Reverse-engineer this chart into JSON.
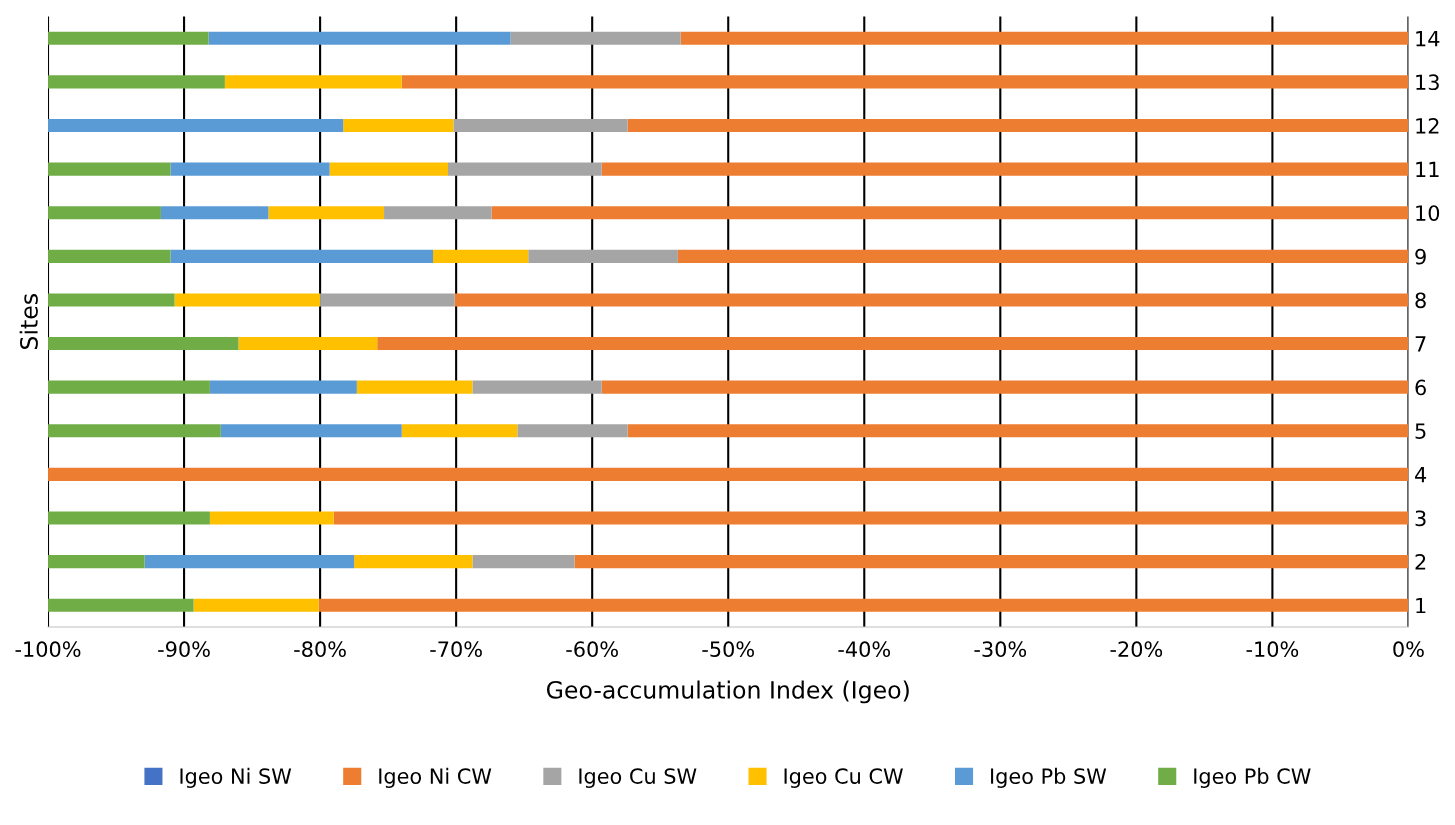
{
  "chart_data": {
    "type": "bar",
    "orientation": "horizontal",
    "stacked": true,
    "xlabel": "Geo-accumulation Index (Igeo)",
    "ylabel": "Sites",
    "categories": [
      "14",
      "13",
      "12",
      "11",
      "10",
      "9",
      "8",
      "7",
      "6",
      "5",
      "4",
      "3",
      "2",
      "1"
    ],
    "series": [
      {
        "name": "Igeo Ni SW",
        "color": "#4472c4",
        "values": [
          0,
          0,
          0,
          0,
          0,
          0,
          0,
          0,
          0,
          0,
          0,
          0,
          0,
          0
        ]
      },
      {
        "name": "Igeo Ni CW",
        "color": "#ed7d31",
        "values": [
          -53.5,
          -74.0,
          -57.4,
          -59.3,
          -67.4,
          -53.7,
          -70.1,
          -75.8,
          -59.3,
          -57.4,
          -100,
          -79.0,
          -61.3,
          -80.1
        ]
      },
      {
        "name": "Igeo Cu SW",
        "color": "#a5a5a5",
        "values": [
          -12.5,
          0,
          -12.8,
          -11.3,
          -7.9,
          -11.0,
          -9.9,
          0,
          -9.5,
          -8.1,
          0,
          0,
          -7.5,
          0
        ]
      },
      {
        "name": "Igeo Cu CW",
        "color": "#ffc000",
        "values": [
          0,
          -13.0,
          -8.1,
          -8.7,
          -8.5,
          -7.0,
          -10.7,
          -10.2,
          -8.5,
          -8.5,
          0,
          -9.1,
          -8.7,
          -9.2
        ]
      },
      {
        "name": "Igeo Pb SW",
        "color": "#5b9bd5",
        "values": [
          -22.2,
          0,
          -21.7,
          -11.7,
          -7.9,
          -19.3,
          0,
          0,
          -10.8,
          -13.3,
          0,
          0,
          -15.4,
          0
        ]
      },
      {
        "name": "Igeo Pb CW",
        "color": "#70ad47",
        "values": [
          -11.8,
          -13.0,
          0,
          -9.0,
          -8.3,
          -9.0,
          -9.3,
          -14.0,
          -11.9,
          -12.7,
          0,
          -11.9,
          -7.1,
          -10.7
        ]
      }
    ],
    "xlim": [
      -100,
      0
    ],
    "xticks": [
      {
        "value": -100,
        "label": "-100%"
      },
      {
        "value": -90,
        "label": "-90%"
      },
      {
        "value": -80,
        "label": "-80%"
      },
      {
        "value": -70,
        "label": "-70%"
      },
      {
        "value": -60,
        "label": "-60%"
      },
      {
        "value": -50,
        "label": "-50%"
      },
      {
        "value": -40,
        "label": "-40%"
      },
      {
        "value": -30,
        "label": "-30%"
      },
      {
        "value": -20,
        "label": "-20%"
      },
      {
        "value": -10,
        "label": "-10%"
      },
      {
        "value": 0,
        "label": "0%"
      }
    ],
    "grid": "x",
    "legend": "bottom"
  }
}
